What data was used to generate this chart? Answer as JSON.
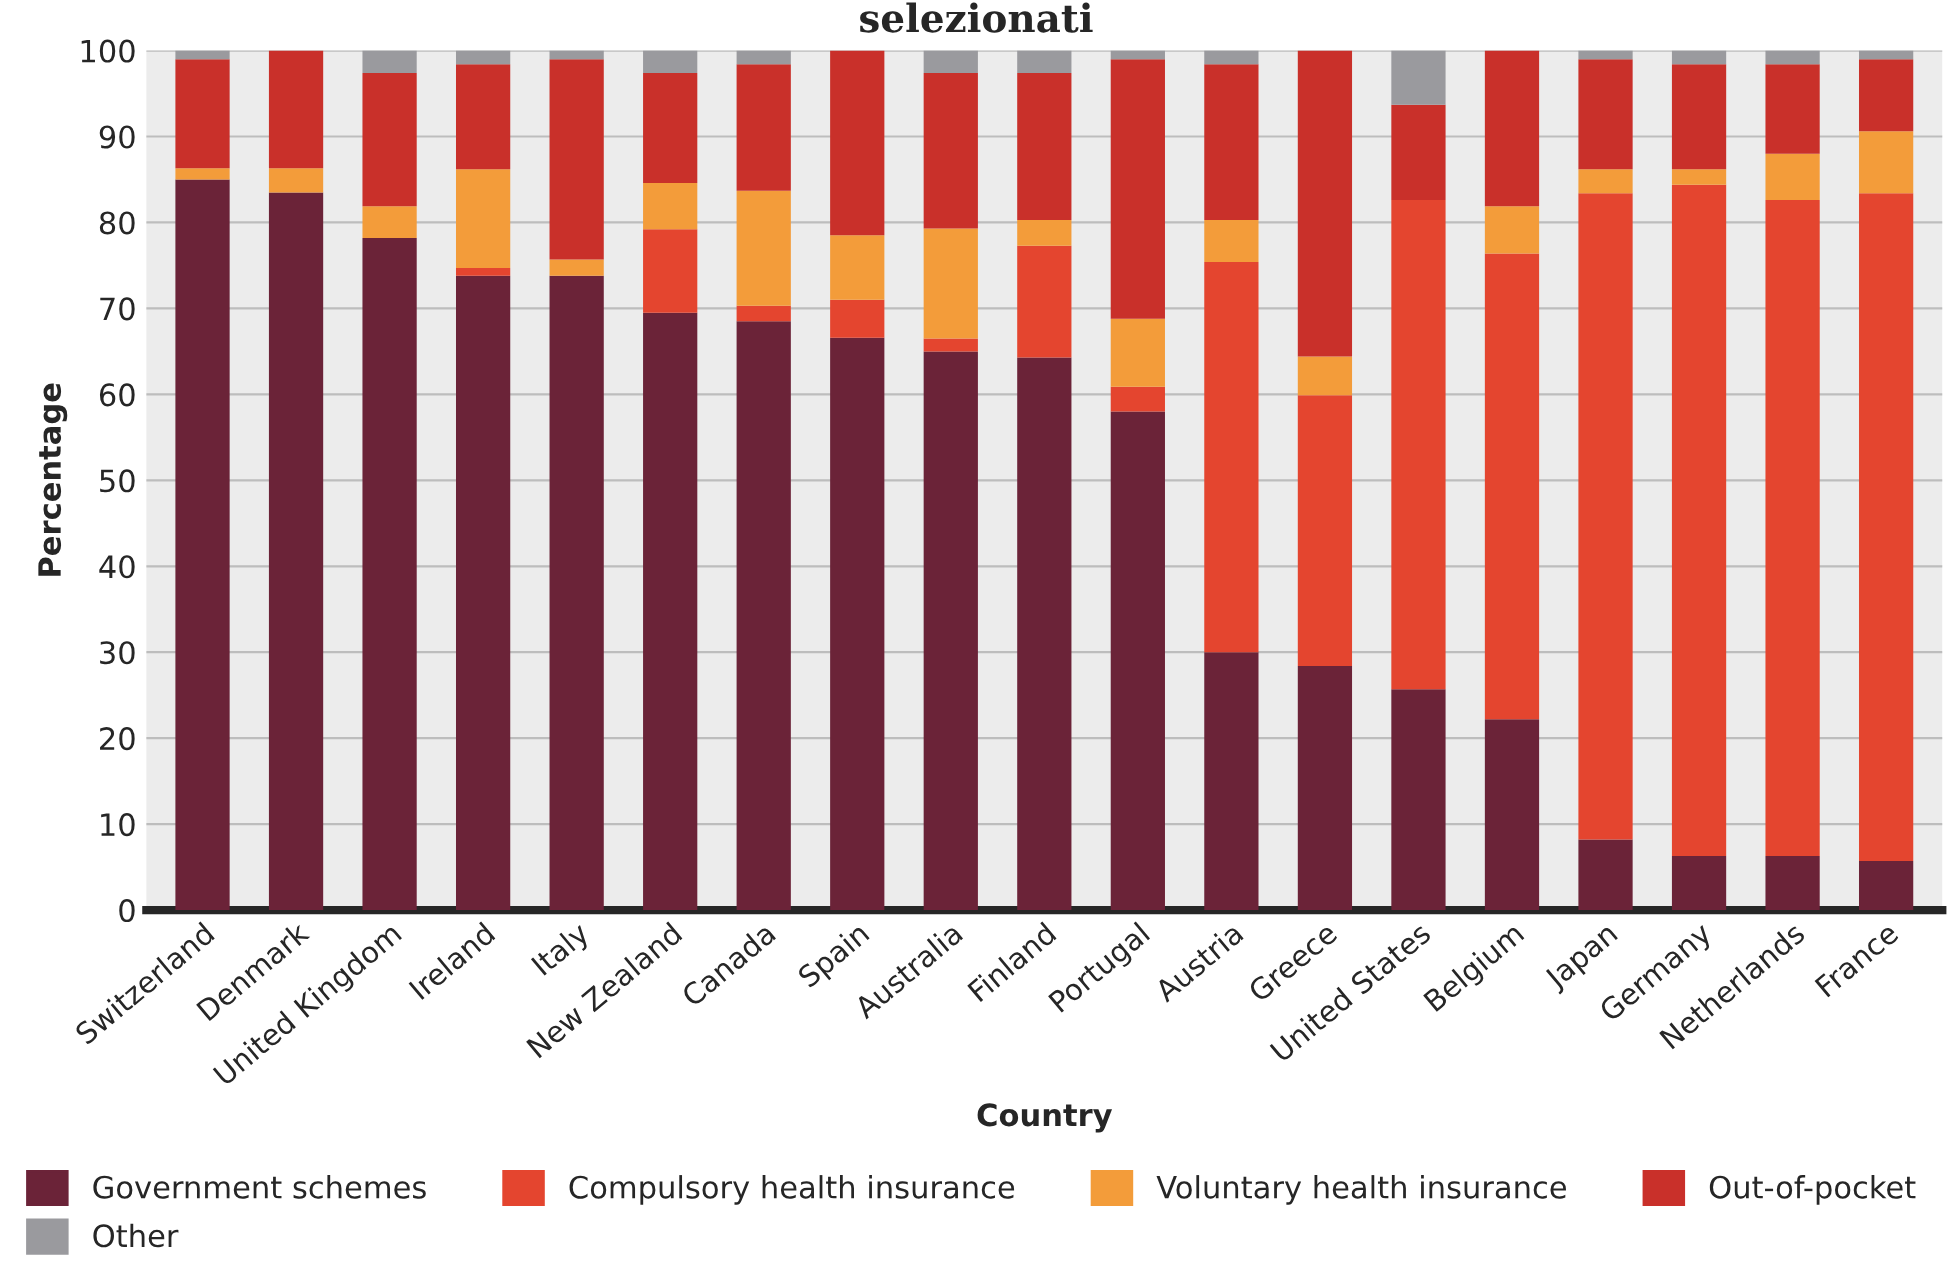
{
  "chart_data": {
    "type": "bar",
    "title": "selezionati",
    "xlabel": "Country",
    "ylabel": "Percentage",
    "stacked": true,
    "categories": [
      "Switzerland",
      "Denmark",
      "United Kingdom",
      "Ireland",
      "Italy",
      "New Zealand",
      "Canada",
      "Spain",
      "Australia",
      "Finland",
      "Portugal",
      "Austria",
      "Greece",
      "United States",
      "Belgium",
      "Japan",
      "Germany",
      "Netherlands",
      "France"
    ],
    "series": [
      {
        "name": "Government schemes",
        "color": "#6b2338",
        "values": [
          85,
          83.5,
          78.2,
          73.8,
          73.8,
          69.5,
          68.5,
          66.6,
          65,
          64.3,
          58,
          30,
          28.4,
          25.7,
          22.2,
          8.2,
          6.3,
          6.3,
          5.7
        ]
      },
      {
        "name": "Compulsory health insurance",
        "color": "#e4452f",
        "values": [
          0,
          0,
          0,
          0.9,
          0,
          9.7,
          1.8,
          4.4,
          1.5,
          13,
          2.9,
          45.4,
          31.5,
          56.9,
          54.2,
          75.2,
          78.1,
          76.3,
          77.7
        ]
      },
      {
        "name": "Voluntary health insurance",
        "color": "#f39c3a",
        "values": [
          1.3,
          2.8,
          3.7,
          11.5,
          1.9,
          5.4,
          13.4,
          7.5,
          12.8,
          3,
          7.9,
          4.9,
          4.5,
          0,
          5.5,
          2.8,
          1.8,
          5.4,
          7.2
        ]
      },
      {
        "name": "Out-of-pocket",
        "color": "#c9302a",
        "values": [
          12.7,
          13.7,
          15.5,
          12.2,
          23.3,
          12.8,
          14.7,
          21.5,
          18.1,
          17.1,
          30.2,
          18.1,
          35.6,
          11.1,
          18.1,
          12.8,
          12.2,
          10.4,
          8.4
        ]
      },
      {
        "name": "Other",
        "color": "#9a9a9e",
        "values": [
          1,
          0,
          2.6,
          1.6,
          1,
          2.6,
          1.6,
          0,
          2.6,
          2.6,
          1,
          1.6,
          0,
          6.3,
          0,
          1,
          1.6,
          1.6,
          1
        ]
      }
    ],
    "ylim": [
      0,
      100
    ],
    "yticks": [
      0,
      10,
      20,
      30,
      40,
      50,
      60,
      70,
      80,
      90,
      100
    ],
    "grid": "y",
    "legend": "bottom"
  }
}
